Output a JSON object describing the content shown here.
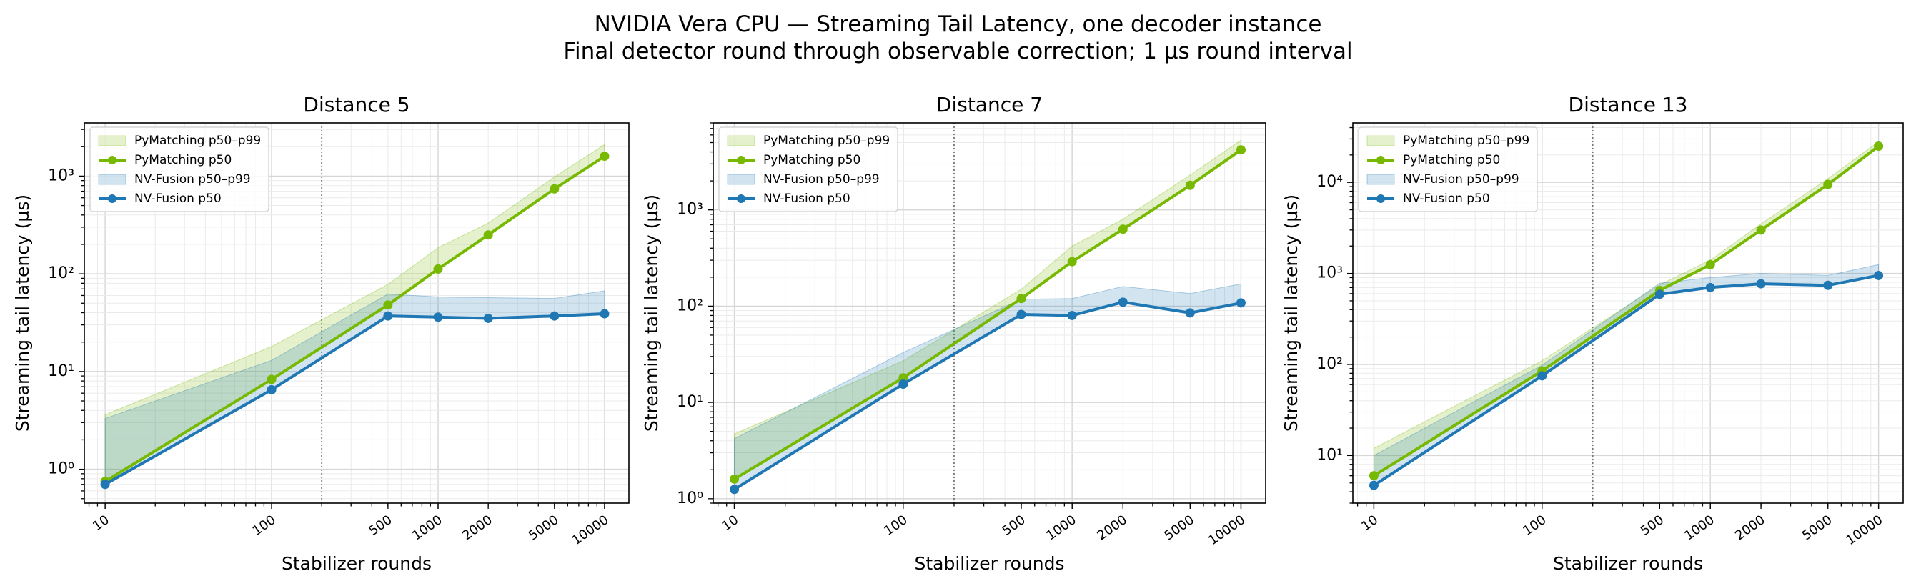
{
  "suptitle": [
    "NVIDIA Vera CPU — Streaming Tail Latency, one decoder instance",
    "Final detector round through observable correction; 1 µs round interval"
  ],
  "legend_labels": [
    "PyMatching p50–p99",
    "PyMatching p50",
    "NV-Fusion p50–p99",
    "NV-Fusion p50"
  ],
  "colors": {
    "pymatching": "#76b900",
    "nvfusion": "#1f77b4"
  },
  "chart_data": [
    {
      "type": "line",
      "title": "Distance 5",
      "xlabel": "Stabilizer rounds",
      "ylabel": "Streaming tail latency (µs)",
      "xscale": "log",
      "yscale": "log",
      "xlim": [
        7.5,
        14000
      ],
      "ylim": [
        0.45,
        3500
      ],
      "xticks": [
        10,
        100,
        500,
        1000,
        2000,
        5000,
        10000
      ],
      "yticks": [
        1,
        10,
        100,
        1000
      ],
      "ytick_labels": [
        "10⁰",
        "10¹",
        "10²",
        "10³"
      ],
      "vline_x": 200,
      "grid": true,
      "legend": "top-left",
      "x": [
        10,
        100,
        500,
        1000,
        2000,
        5000,
        10000
      ],
      "series": [
        {
          "name": "PyMatching p50",
          "values": [
            0.75,
            8.3,
            48,
            112,
            250,
            740,
            1600
          ],
          "p99": [
            3.6,
            18,
            78,
            185,
            330,
            980,
            2100
          ]
        },
        {
          "name": "NV-Fusion p50",
          "values": [
            0.7,
            6.5,
            37,
            36,
            35,
            37,
            39
          ],
          "p99": [
            3.3,
            13,
            62,
            58,
            57,
            56,
            67
          ]
        }
      ]
    },
    {
      "type": "line",
      "title": "Distance 7",
      "xlabel": "Stabilizer rounds",
      "ylabel": "Streaming tail latency (µs)",
      "xscale": "log",
      "yscale": "log",
      "xlim": [
        7.5,
        14000
      ],
      "ylim": [
        0.9,
        8000
      ],
      "xticks": [
        10,
        100,
        500,
        1000,
        2000,
        5000,
        10000
      ],
      "yticks": [
        1,
        10,
        100,
        1000
      ],
      "ytick_labels": [
        "10⁰",
        "10¹",
        "10²",
        "10³"
      ],
      "vline_x": 200,
      "grid": true,
      "legend": "top-left",
      "x": [
        10,
        100,
        500,
        1000,
        2000,
        5000,
        10000
      ],
      "series": [
        {
          "name": "PyMatching p50",
          "values": [
            1.6,
            18,
            120,
            290,
            630,
            1800,
            4200
          ],
          "p99": [
            4.7,
            27,
            150,
            420,
            800,
            2300,
            5300
          ]
        },
        {
          "name": "NV-Fusion p50",
          "values": [
            1.25,
            15.5,
            82,
            80,
            110,
            85,
            108
          ],
          "p99": [
            4.2,
            33,
            118,
            120,
            160,
            135,
            170
          ]
        }
      ]
    },
    {
      "type": "line",
      "title": "Distance 13",
      "xlabel": "Stabilizer rounds",
      "ylabel": "Streaming tail latency (µs)",
      "xscale": "log",
      "yscale": "log",
      "xlim": [
        7.5,
        14000
      ],
      "ylim": [
        3,
        45000
      ],
      "xticks": [
        10,
        100,
        500,
        1000,
        2000,
        5000,
        10000
      ],
      "yticks": [
        10,
        100,
        1000,
        10000
      ],
      "ytick_labels": [
        "10¹",
        "10²",
        "10³",
        "10⁴"
      ],
      "vline_x": 200,
      "grid": true,
      "legend": "top-left",
      "x": [
        10,
        100,
        500,
        1000,
        2000,
        5000,
        10000
      ],
      "series": [
        {
          "name": "PyMatching p50",
          "values": [
            6,
            85,
            650,
            1250,
            3000,
            9500,
            25000
          ],
          "p99": [
            12,
            110,
            750,
            1400,
            3500,
            11000,
            28000
          ]
        },
        {
          "name": "NV-Fusion p50",
          "values": [
            4.7,
            75,
            590,
            700,
            770,
            740,
            950
          ],
          "p99": [
            10,
            98,
            780,
            900,
            1000,
            950,
            1250
          ]
        }
      ]
    }
  ]
}
